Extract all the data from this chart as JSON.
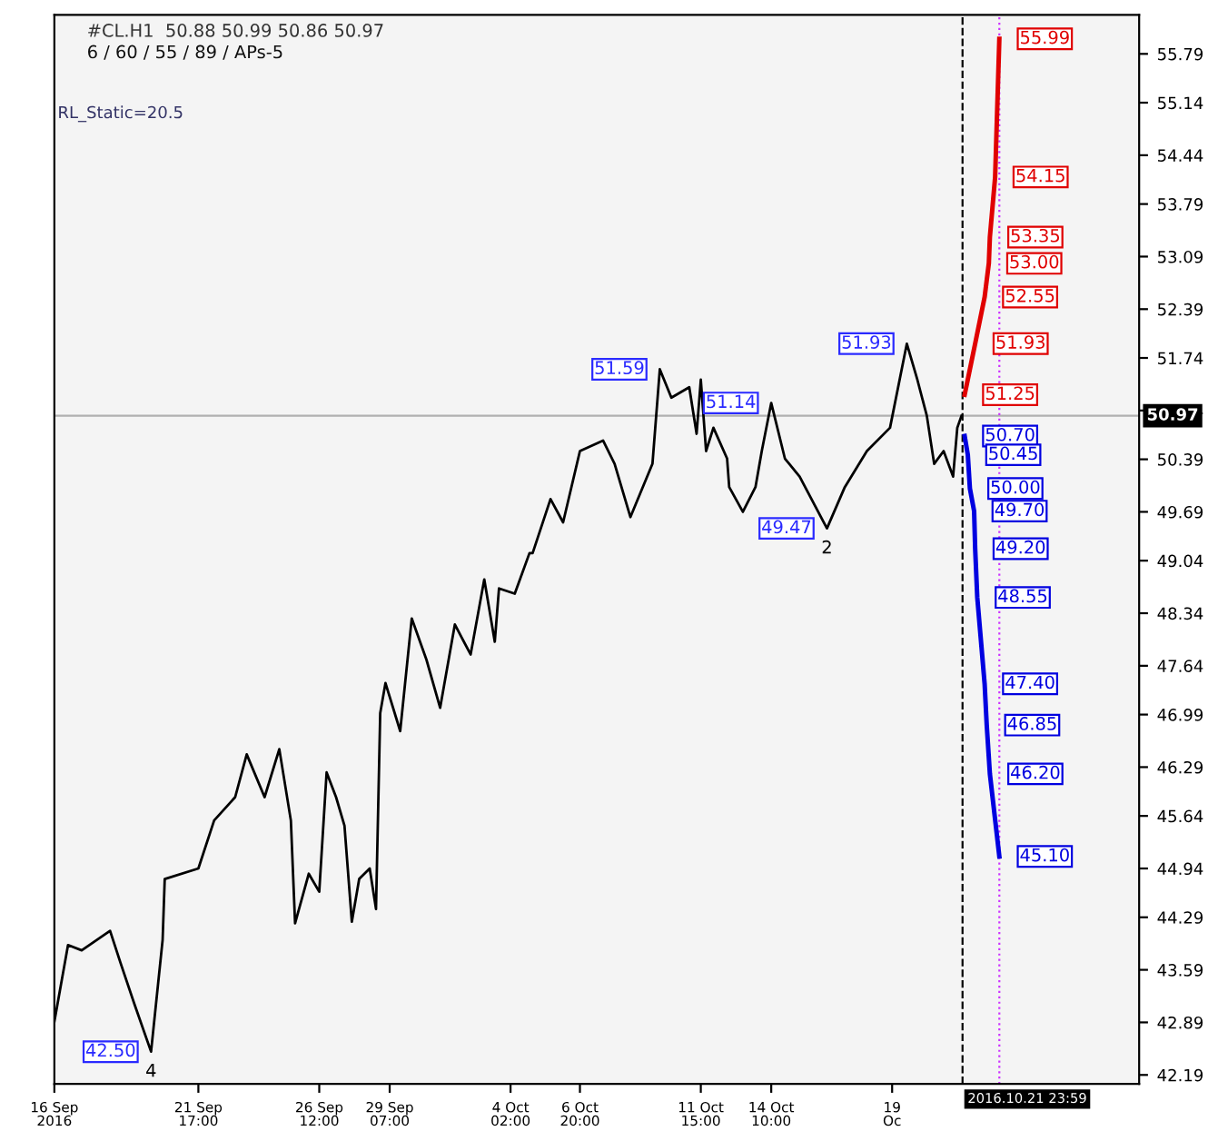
{
  "chart_data": {
    "type": "line",
    "title": "#CL.H1  50.88 50.99 50.86 50.97",
    "subtitle": "6 / 60 / 55 / 89 / APs-5",
    "annotations": [
      "RL_Static=20.5",
      {
        "text": "42.50",
        "x": "2016-09-19T20:00",
        "y": 42.5
      },
      {
        "text": "4",
        "x": "2016-09-19T20:00",
        "y": 42.5
      },
      {
        "text": "51.59",
        "x": "2016-10-10T00:00",
        "y": 51.59
      },
      {
        "text": "51.14",
        "x": "2016-10-14T10:00",
        "y": 51.14
      },
      {
        "text": "49.47",
        "x": "2016-10-16T15:00",
        "y": 49.47
      },
      {
        "text": "2",
        "x": "2016-10-16T15:00",
        "y": 49.47
      },
      {
        "text": "51.93",
        "x": "2016-10-19T19:00",
        "y": 51.93
      }
    ],
    "series": [
      {
        "color": "#000000",
        "x": [
          "2016-09-16T00:00",
          "2016-09-16T13:00",
          "2016-09-17T02:00",
          "2016-09-18T05:00",
          "2016-09-18T15:00",
          "2016-09-19T04:00",
          "2016-09-19T20:00",
          "2016-09-20T07:00",
          "2016-09-20T09:00",
          "2016-09-21T17:00",
          "2016-09-22T08:00",
          "2016-09-23T04:00",
          "2016-09-23T15:00",
          "2016-09-24T08:00",
          "2016-09-24T22:00",
          "2016-09-25T09:00",
          "2016-09-25T13:00",
          "2016-09-26T02:00",
          "2016-09-26T12:00",
          "2016-09-26T19:00",
          "2016-09-27T04:00",
          "2016-09-27T12:00",
          "2016-09-27T19:00",
          "2016-09-28T02:00",
          "2016-09-28T12:00",
          "2016-09-28T18:00",
          "2016-09-28T22:00",
          "2016-09-29T03:00",
          "2016-09-29T17:00",
          "2016-09-30T04:00",
          "2016-09-30T18:00",
          "2016-10-01T07:00",
          "2016-10-01T21:00",
          "2016-10-02T12:00",
          "2016-10-03T01:00",
          "2016-10-03T11:00",
          "2016-10-03T15:00",
          "2016-10-04T06:00",
          "2016-10-04T20:00",
          "2016-10-04T23:00",
          "2016-10-05T16:00",
          "2016-10-06T04:00",
          "2016-10-06T20:00",
          "2016-10-07T18:00",
          "2016-10-08T05:00",
          "2016-10-08T20:00",
          "2016-10-09T17:00",
          "2016-10-10T00:00",
          "2016-10-10T11:00",
          "2016-10-11T04:00",
          "2016-10-11T11:00",
          "2016-10-11T15:00",
          "2016-10-11T20:00",
          "2016-10-12T03:00",
          "2016-10-12T16:00",
          "2016-10-12T18:00",
          "2016-10-13T07:00",
          "2016-10-13T19:00",
          "2016-10-14T01:00",
          "2016-10-14T10:00",
          "2016-10-14T23:00",
          "2016-10-15T13:00",
          "2016-10-16T15:00",
          "2016-10-17T08:00",
          "2016-10-18T05:00",
          "2016-10-19T03:00",
          "2016-10-19T19:00",
          "2016-10-20T05:00",
          "2016-10-20T14:00",
          "2016-10-20T21:00",
          "2016-10-21T06:00",
          "2016-10-21T15:00",
          "2016-10-21T19:00",
          "2016-10-21T23:00"
        ],
        "values": [
          42.9,
          43.92,
          43.85,
          44.11,
          43.68,
          43.14,
          42.5,
          43.99,
          44.8,
          44.94,
          45.58,
          45.89,
          46.46,
          45.89,
          46.53,
          45.58,
          44.21,
          44.87,
          44.63,
          46.22,
          45.89,
          45.51,
          44.23,
          44.8,
          44.94,
          44.4,
          47.01,
          47.41,
          46.77,
          48.27,
          47.72,
          47.08,
          48.19,
          47.79,
          48.79,
          47.96,
          48.67,
          48.6,
          49.14,
          49.14,
          49.86,
          49.55,
          50.5,
          50.64,
          50.33,
          49.62,
          50.33,
          51.59,
          51.21,
          51.35,
          50.73,
          51.45,
          50.5,
          50.81,
          50.4,
          50.02,
          49.69,
          50.02,
          50.5,
          51.14,
          50.4,
          50.16,
          49.47,
          50.02,
          50.5,
          50.81,
          51.93,
          51.45,
          50.97,
          50.33,
          50.5,
          50.16,
          50.81,
          50.97
        ]
      },
      {
        "color": "#e00000",
        "x": [
          "2016-10-22T02:00",
          "2016-10-22T12:00",
          "2016-10-22T21:00",
          "2016-10-23T01:00",
          "2016-10-23T02:00",
          "2016-10-23T07:00",
          "2016-10-23T11:00"
        ],
        "values": [
          51.25,
          51.93,
          52.55,
          53.0,
          53.35,
          54.15,
          55.99
        ],
        "value_labels": [
          "51.25",
          "51.93",
          "52.55",
          "53.00",
          "53.35",
          "54.15",
          "55.99"
        ]
      },
      {
        "color": "#0000e0",
        "x": [
          "2016-10-22T02:00",
          "2016-10-22T05:00",
          "2016-10-22T07:00",
          "2016-10-22T11:00",
          "2016-10-22T12:00",
          "2016-10-22T14:00",
          "2016-10-22T21:00",
          "2016-10-22T23:00",
          "2016-10-23T02:00",
          "2016-10-23T11:00"
        ],
        "values": [
          50.7,
          50.45,
          50.0,
          49.7,
          49.2,
          48.55,
          47.4,
          46.85,
          46.2,
          45.1
        ],
        "value_labels": [
          "50.70",
          "50.45",
          "50.00",
          "49.70",
          "49.20",
          "48.55",
          "47.40",
          "46.85",
          "46.20",
          "45.10"
        ]
      }
    ],
    "ref_lines": [
      {
        "axis": "y",
        "value": 50.97,
        "label": "50.97",
        "color": "#b0b0b0",
        "line_style": "solid"
      },
      {
        "axis": "x",
        "value": "2016-10-21T23:59",
        "label": "2016.10.21 23:59",
        "color": "#000000",
        "line_style": "dashed"
      },
      {
        "axis": "x",
        "value": "2016-10-23T11:00",
        "color": "#cc33ff",
        "line_style": "dotted"
      }
    ],
    "xlim": [
      "2016-09-16T00:00",
      "2016-10-29T00:00"
    ],
    "xticks": [
      {
        "value": "2016-09-16T00:00",
        "label": "16 Sep 2016"
      },
      {
        "value": "2016-09-21T17:00",
        "label": "21 Sep 17:00"
      },
      {
        "value": "2016-09-26T12:00",
        "label": "26 Sep 12:00"
      },
      {
        "value": "2016-09-29T07:00",
        "label": "29 Sep 07:00"
      },
      {
        "value": "2016-10-04T02:00",
        "label": "4 Oct 02:00"
      },
      {
        "value": "2016-10-06T20:00",
        "label": "6 Oct 20:00"
      },
      {
        "value": "2016-10-11T15:00",
        "label": "11 Oct 15:00"
      },
      {
        "value": "2016-10-14T10:00",
        "label": "14 Oct 10:00"
      },
      {
        "value": "2016-10-19T05:00",
        "label": "19 Oc"
      }
    ],
    "ylim": [
      42.07,
      56.31
    ],
    "yticks": [
      42.19,
      42.89,
      43.59,
      44.29,
      44.94,
      45.64,
      46.29,
      46.99,
      47.64,
      48.34,
      49.04,
      49.69,
      50.39,
      51.04,
      51.74,
      52.39,
      53.09,
      53.79,
      54.44,
      55.14,
      55.79
    ],
    "grid": false,
    "legend": false,
    "marker": "none",
    "line_style": "solid"
  }
}
